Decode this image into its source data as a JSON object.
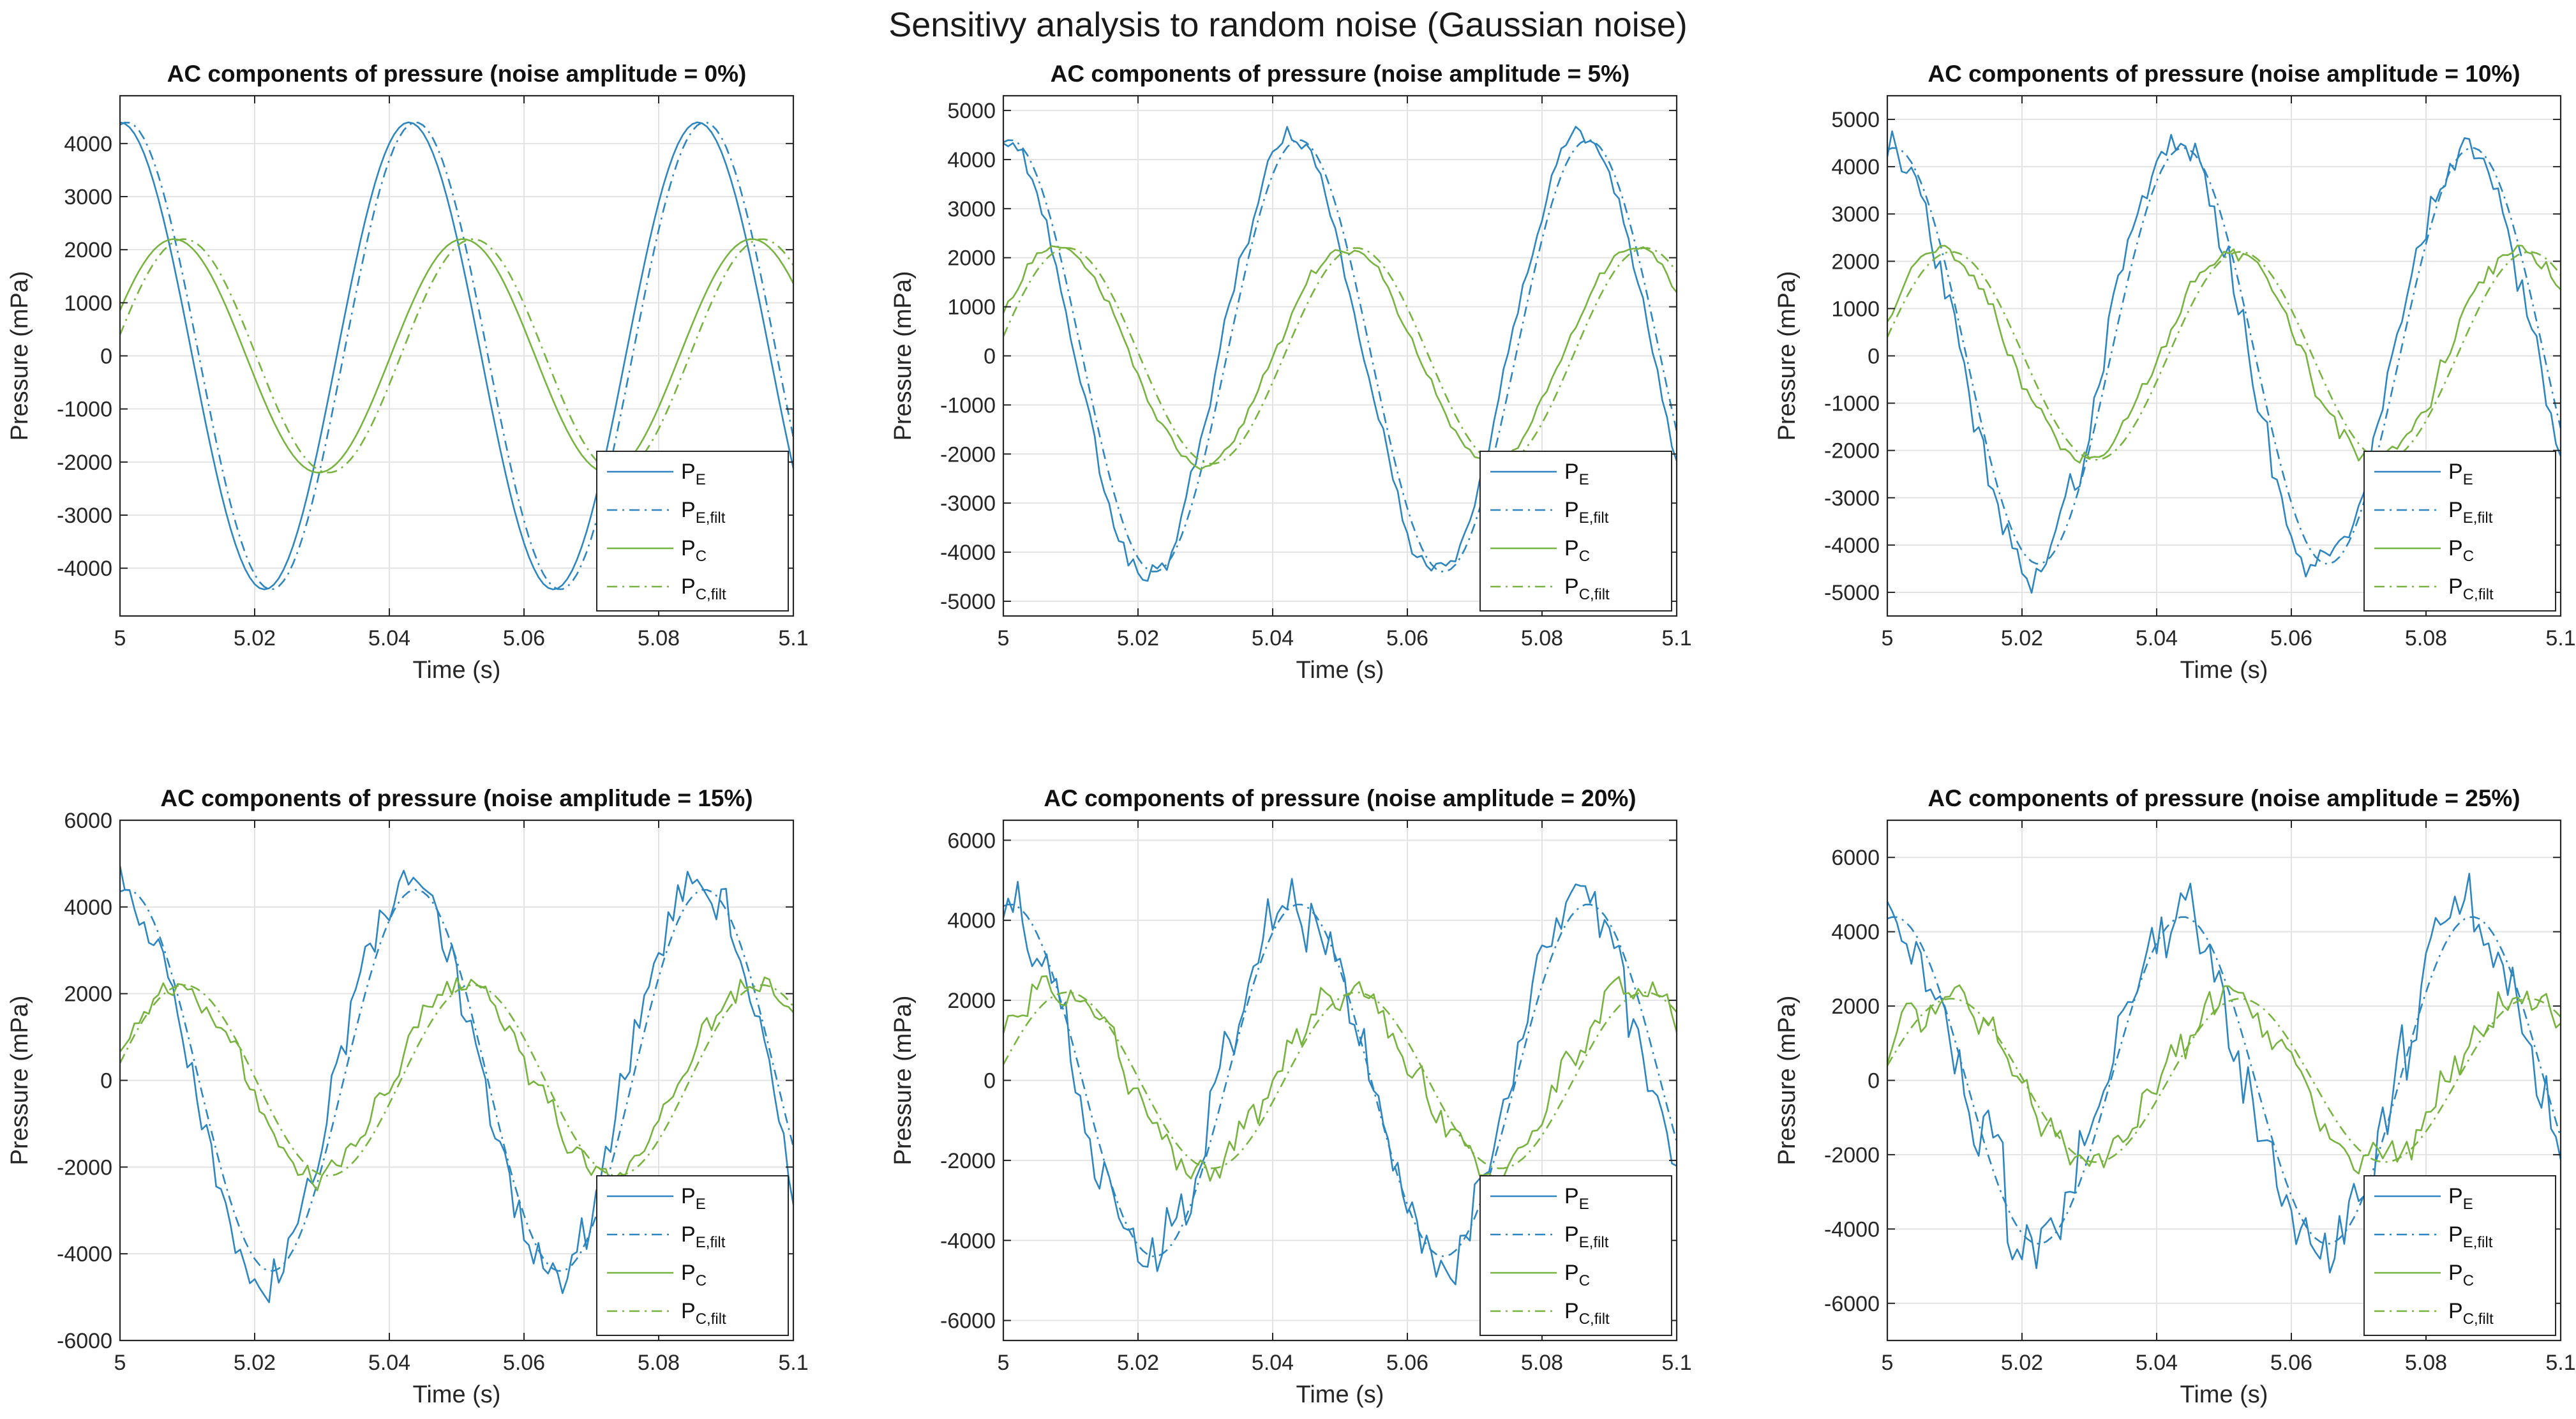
{
  "figure": {
    "title": "Sensitivy analysis to random noise (Gaussian noise)"
  },
  "colors": {
    "pe": "#2e86c1",
    "pc": "#77b33e",
    "grid": "#e3e3e3",
    "axis": "#262626"
  },
  "chart_data": [
    {
      "type": "line",
      "title": "AC components of pressure (noise amplitude = 0%)",
      "xlabel": "Time (s)",
      "ylabel": "Pressure (mPa)",
      "xlim": [
        5,
        5.1
      ],
      "ylim": [
        -4900,
        4900
      ],
      "x_ticks": [
        5,
        5.02,
        5.04,
        5.06,
        5.08,
        5.1
      ],
      "x_tick_labels": [
        "5",
        "5.02",
        "5.04",
        "5.06",
        "5.08",
        "5.1"
      ],
      "y_ticks": [
        -4000,
        -3000,
        -2000,
        -1000,
        0,
        1000,
        2000,
        3000,
        4000
      ],
      "y_tick_labels": [
        "-4000",
        "-3000",
        "-2000",
        "-1000",
        "0",
        "1000",
        "2000",
        "3000",
        "4000"
      ],
      "grid": true,
      "legend_location": "bottom-right",
      "noise_amplitude_percent": 0,
      "noise_seed": 11,
      "series": [
        {
          "name": "P_E",
          "label_base": "P",
          "label_sub": "E",
          "amplitude": 4400,
          "frequency_hz": 23.3,
          "peak_time_s": 5.0,
          "style": "solid"
        },
        {
          "name": "P_E,filt",
          "label_base": "P",
          "label_sub": "E,filt",
          "amplitude": 4400,
          "frequency_hz": 23.3,
          "peak_time_s": 5.001,
          "style": "dashdot"
        },
        {
          "name": "P_C",
          "label_base": "P",
          "label_sub": "C",
          "amplitude": 2200,
          "frequency_hz": 23.3,
          "peak_time_s": 5.008,
          "style": "solid"
        },
        {
          "name": "P_C,filt",
          "label_base": "P",
          "label_sub": "C,filt",
          "amplitude": 2200,
          "frequency_hz": 23.3,
          "peak_time_s": 5.0095,
          "style": "dashdot"
        }
      ]
    },
    {
      "type": "line",
      "title": "AC components of pressure (noise amplitude = 5%)",
      "xlabel": "Time (s)",
      "ylabel": "Pressure (mPa)",
      "xlim": [
        5,
        5.1
      ],
      "ylim": [
        -5300,
        5300
      ],
      "x_ticks": [
        5,
        5.02,
        5.04,
        5.06,
        5.08,
        5.1
      ],
      "x_tick_labels": [
        "5",
        "5.02",
        "5.04",
        "5.06",
        "5.08",
        "5.1"
      ],
      "y_ticks": [
        -5000,
        -4000,
        -3000,
        -2000,
        -1000,
        0,
        1000,
        2000,
        3000,
        4000,
        5000
      ],
      "y_tick_labels": [
        "-5000",
        "-4000",
        "-3000",
        "-2000",
        "-1000",
        "0",
        "1000",
        "2000",
        "3000",
        "4000",
        "5000"
      ],
      "grid": true,
      "legend_location": "bottom-right",
      "noise_amplitude_percent": 5,
      "noise_seed": 23,
      "series": [
        {
          "name": "P_E",
          "label_base": "P",
          "label_sub": "E",
          "amplitude": 4450,
          "frequency_hz": 23.3,
          "peak_time_s": 5.0,
          "style": "solid"
        },
        {
          "name": "P_E,filt",
          "label_base": "P",
          "label_sub": "E,filt",
          "amplitude": 4400,
          "frequency_hz": 23.3,
          "peak_time_s": 5.001,
          "style": "dashdot"
        },
        {
          "name": "P_C",
          "label_base": "P",
          "label_sub": "C",
          "amplitude": 2200,
          "frequency_hz": 23.3,
          "peak_time_s": 5.008,
          "style": "solid"
        },
        {
          "name": "P_C,filt",
          "label_base": "P",
          "label_sub": "C,filt",
          "amplitude": 2200,
          "frequency_hz": 23.3,
          "peak_time_s": 5.0095,
          "style": "dashdot"
        }
      ]
    },
    {
      "type": "line",
      "title": "AC components of pressure (noise amplitude = 10%)",
      "xlabel": "Time (s)",
      "ylabel": "Pressure (mPa)",
      "xlim": [
        5,
        5.1
      ],
      "ylim": [
        -5500,
        5500
      ],
      "x_ticks": [
        5,
        5.02,
        5.04,
        5.06,
        5.08,
        5.1
      ],
      "x_tick_labels": [
        "5",
        "5.02",
        "5.04",
        "5.06",
        "5.08",
        "5.1"
      ],
      "y_ticks": [
        -5000,
        -4000,
        -3000,
        -2000,
        -1000,
        0,
        1000,
        2000,
        3000,
        4000,
        5000
      ],
      "y_tick_labels": [
        "-5000",
        "-4000",
        "-3000",
        "-2000",
        "-1000",
        "0",
        "1000",
        "2000",
        "3000",
        "4000",
        "5000"
      ],
      "grid": true,
      "legend_location": "bottom-right",
      "noise_amplitude_percent": 10,
      "noise_seed": 37,
      "series": [
        {
          "name": "P_E",
          "label_base": "P",
          "label_sub": "E",
          "amplitude": 4450,
          "frequency_hz": 23.3,
          "peak_time_s": 5.0,
          "style": "solid"
        },
        {
          "name": "P_E,filt",
          "label_base": "P",
          "label_sub": "E,filt",
          "amplitude": 4400,
          "frequency_hz": 23.3,
          "peak_time_s": 5.001,
          "style": "dashdot"
        },
        {
          "name": "P_C",
          "label_base": "P",
          "label_sub": "C",
          "amplitude": 2200,
          "frequency_hz": 23.3,
          "peak_time_s": 5.008,
          "style": "solid"
        },
        {
          "name": "P_C,filt",
          "label_base": "P",
          "label_sub": "C,filt",
          "amplitude": 2200,
          "frequency_hz": 23.3,
          "peak_time_s": 5.0095,
          "style": "dashdot"
        }
      ]
    },
    {
      "type": "line",
      "title": "AC components of pressure (noise amplitude = 15%)",
      "xlabel": "Time (s)",
      "ylabel": "Pressure (mPa)",
      "xlim": [
        5,
        5.1
      ],
      "ylim": [
        -6000,
        6000
      ],
      "x_ticks": [
        5,
        5.02,
        5.04,
        5.06,
        5.08,
        5.1
      ],
      "x_tick_labels": [
        "5",
        "5.02",
        "5.04",
        "5.06",
        "5.08",
        "5.1"
      ],
      "y_ticks": [
        -6000,
        -4000,
        -2000,
        0,
        2000,
        4000,
        6000
      ],
      "y_tick_labels": [
        "-6000",
        "-4000",
        "-2000",
        "0",
        "2000",
        "4000",
        "6000"
      ],
      "grid": true,
      "legend_location": "bottom-right",
      "noise_amplitude_percent": 15,
      "noise_seed": 51,
      "series": [
        {
          "name": "P_E",
          "label_base": "P",
          "label_sub": "E",
          "amplitude": 4500,
          "frequency_hz": 23.3,
          "peak_time_s": 5.0,
          "style": "solid"
        },
        {
          "name": "P_E,filt",
          "label_base": "P",
          "label_sub": "E,filt",
          "amplitude": 4400,
          "frequency_hz": 23.3,
          "peak_time_s": 5.001,
          "style": "dashdot"
        },
        {
          "name": "P_C",
          "label_base": "P",
          "label_sub": "C",
          "amplitude": 2200,
          "frequency_hz": 23.3,
          "peak_time_s": 5.008,
          "style": "solid"
        },
        {
          "name": "P_C,filt",
          "label_base": "P",
          "label_sub": "C,filt",
          "amplitude": 2200,
          "frequency_hz": 23.3,
          "peak_time_s": 5.0095,
          "style": "dashdot"
        }
      ]
    },
    {
      "type": "line",
      "title": "AC components of pressure (noise amplitude = 20%)",
      "xlabel": "Time (s)",
      "ylabel": "Pressure (mPa)",
      "xlim": [
        5,
        5.1
      ],
      "ylim": [
        -6500,
        6500
      ],
      "x_ticks": [
        5,
        5.02,
        5.04,
        5.06,
        5.08,
        5.1
      ],
      "x_tick_labels": [
        "5",
        "5.02",
        "5.04",
        "5.06",
        "5.08",
        "5.1"
      ],
      "y_ticks": [
        -6000,
        -4000,
        -2000,
        0,
        2000,
        4000,
        6000
      ],
      "y_tick_labels": [
        "-6000",
        "-4000",
        "-2000",
        "0",
        "2000",
        "4000",
        "6000"
      ],
      "grid": true,
      "legend_location": "bottom-right",
      "noise_amplitude_percent": 20,
      "noise_seed": 67,
      "series": [
        {
          "name": "P_E",
          "label_base": "P",
          "label_sub": "E",
          "amplitude": 4500,
          "frequency_hz": 23.3,
          "peak_time_s": 5.0,
          "style": "solid"
        },
        {
          "name": "P_E,filt",
          "label_base": "P",
          "label_sub": "E,filt",
          "amplitude": 4400,
          "frequency_hz": 23.3,
          "peak_time_s": 5.001,
          "style": "dashdot"
        },
        {
          "name": "P_C",
          "label_base": "P",
          "label_sub": "C",
          "amplitude": 2200,
          "frequency_hz": 23.3,
          "peak_time_s": 5.008,
          "style": "solid"
        },
        {
          "name": "P_C,filt",
          "label_base": "P",
          "label_sub": "C,filt",
          "amplitude": 2200,
          "frequency_hz": 23.3,
          "peak_time_s": 5.0095,
          "style": "dashdot"
        }
      ]
    },
    {
      "type": "line",
      "title": "AC components of pressure (noise amplitude = 25%)",
      "xlabel": "Time (s)",
      "ylabel": "Pressure (mPa)",
      "xlim": [
        5,
        5.1
      ],
      "ylim": [
        -7000,
        7000
      ],
      "x_ticks": [
        5,
        5.02,
        5.04,
        5.06,
        5.08,
        5.1
      ],
      "x_tick_labels": [
        "5",
        "5.02",
        "5.04",
        "5.06",
        "5.08",
        "5.1"
      ],
      "y_ticks": [
        -6000,
        -4000,
        -2000,
        0,
        2000,
        4000,
        6000
      ],
      "y_tick_labels": [
        "-6000",
        "-4000",
        "-2000",
        "0",
        "2000",
        "4000",
        "6000"
      ],
      "grid": true,
      "legend_location": "bottom-right",
      "noise_amplitude_percent": 25,
      "noise_seed": 83,
      "series": [
        {
          "name": "P_E",
          "label_base": "P",
          "label_sub": "E",
          "amplitude": 4500,
          "frequency_hz": 23.3,
          "peak_time_s": 5.0,
          "style": "solid"
        },
        {
          "name": "P_E,filt",
          "label_base": "P",
          "label_sub": "E,filt",
          "amplitude": 4400,
          "frequency_hz": 23.3,
          "peak_time_s": 5.001,
          "style": "dashdot"
        },
        {
          "name": "P_C",
          "label_base": "P",
          "label_sub": "C",
          "amplitude": 2200,
          "frequency_hz": 23.3,
          "peak_time_s": 5.008,
          "style": "solid"
        },
        {
          "name": "P_C,filt",
          "label_base": "P",
          "label_sub": "C,filt",
          "amplitude": 2200,
          "frequency_hz": 23.3,
          "peak_time_s": 5.0095,
          "style": "dashdot"
        }
      ]
    }
  ]
}
